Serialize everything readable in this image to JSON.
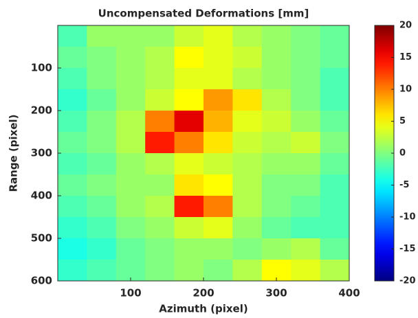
{
  "chart_data": {
    "type": "heatmap",
    "title": "Uncompensated Deformations [mm]",
    "xlabel": "Azimuth (pixel)",
    "ylabel": "Range (pixel)",
    "x": [
      20,
      60,
      100,
      140,
      180,
      220,
      260,
      300,
      340,
      380
    ],
    "y": [
      25,
      75,
      125,
      175,
      225,
      275,
      325,
      375,
      425,
      475,
      525,
      575
    ],
    "z": [
      [
        -2,
        1,
        1,
        1,
        3,
        4,
        2,
        1,
        0,
        -1
      ],
      [
        -1,
        0,
        1,
        2,
        5,
        4,
        3,
        1,
        0,
        -1
      ],
      [
        -2,
        0,
        1,
        2,
        4,
        4,
        2,
        1,
        0,
        -2
      ],
      [
        -3,
        -1,
        1,
        3,
        5,
        9,
        6,
        2,
        0,
        -2
      ],
      [
        -2,
        0,
        2,
        10,
        16,
        8,
        4,
        3,
        1,
        -1
      ],
      [
        -1,
        0,
        2,
        14,
        10,
        6,
        3,
        2,
        3,
        0
      ],
      [
        -2,
        -1,
        1,
        2,
        4,
        3,
        2,
        1,
        1,
        -1
      ],
      [
        -1,
        0,
        1,
        1,
        6,
        5,
        2,
        0,
        0,
        -2
      ],
      [
        -2,
        -1,
        1,
        2,
        14,
        10,
        2,
        0,
        -1,
        -2
      ],
      [
        -3,
        -2,
        0,
        1,
        3,
        4,
        1,
        -1,
        -2,
        -2
      ],
      [
        -4,
        -3,
        -1,
        0,
        1,
        1,
        0,
        1,
        2,
        -1
      ],
      [
        -3,
        -2,
        -1,
        0,
        1,
        0,
        2,
        5,
        4,
        2
      ]
    ],
    "xlim": [
      0,
      400
    ],
    "ylim": [
      0,
      600
    ],
    "y_reversed": true,
    "xticks": [
      100,
      200,
      300,
      400
    ],
    "yticks": [
      100,
      200,
      300,
      400,
      500,
      600
    ],
    "colormap": "jet",
    "clim": [
      -20,
      20
    ],
    "cticks": [
      20,
      15,
      10,
      5,
      0,
      -5,
      -10,
      -15,
      -20
    ]
  }
}
